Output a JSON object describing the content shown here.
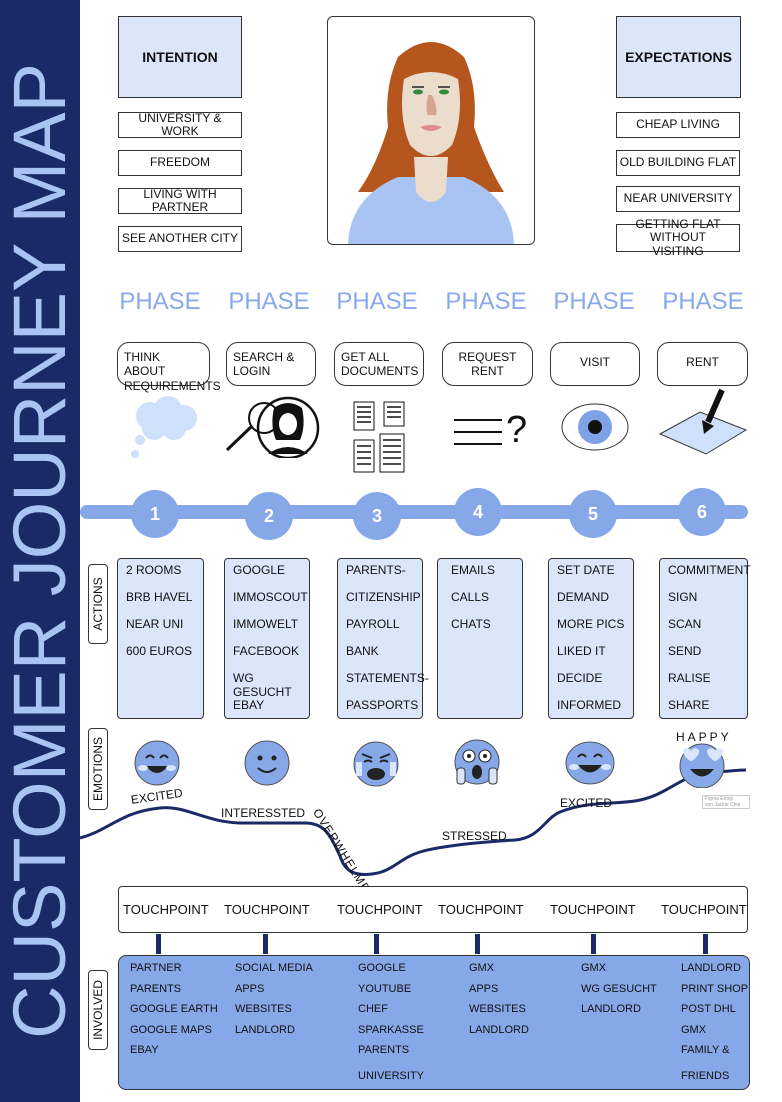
{
  "title": "CUSTOMER JOURNEY MAP",
  "intention": {
    "heading": "INTENTION",
    "items": [
      "UNIVERSITY & WORK",
      "FREEDOM",
      "LIVING WITH PARTNER",
      "SEE ANOTHER CITY"
    ]
  },
  "expectations": {
    "heading": "EXPECTATIONS",
    "items": [
      "CHEAP LIVING",
      "OLD BUILDING FLAT",
      "NEAR UNIVERSITY",
      "GETTING FLAT WITHOUT VISITING"
    ]
  },
  "phase_label": "PHASE",
  "phases": [
    {
      "num": "1",
      "label": "THINK ABOUT REQUIREMENTS",
      "icon": "thought-cloud-icon"
    },
    {
      "num": "2",
      "label": "SEARCH & LOGIN",
      "icon": "magnifier-person-icon"
    },
    {
      "num": "3",
      "label": "GET ALL DOCUMENTS",
      "icon": "documents-icon"
    },
    {
      "num": "4",
      "label": "REQUEST RENT",
      "icon": "question-lines-icon"
    },
    {
      "num": "5",
      "label": "VISIT",
      "icon": "eye-icon"
    },
    {
      "num": "6",
      "label": "RENT",
      "icon": "signing-paper-icon"
    }
  ],
  "actions_label": "ACTIONS",
  "actions": [
    [
      "2 ROOMS",
      "BRB HAVEL",
      "NEAR UNI",
      "600 EUROS"
    ],
    [
      "GOOGLE",
      "IMMOSCOUT",
      "IMMOWELT",
      "FACEBOOK",
      "WG GESUCHT",
      "EBAY"
    ],
    [
      "PARENTS-",
      "CITIZENSHIP",
      "PAYROLL",
      "BANK",
      "STATEMENTS-",
      "PASSPORTS"
    ],
    [
      "EMAILS",
      "CALLS",
      "CHATS"
    ],
    [
      "SET DATE",
      "DEMAND",
      "MORE PICS",
      "LIKED IT",
      "DECIDE",
      "INFORMED"
    ],
    [
      "COMMITMENT",
      "SIGN",
      "SCAN",
      "SEND",
      "RALISE",
      "SHARE"
    ]
  ],
  "emotions_label": "EMOTIONS",
  "emotions": {
    "excited1": "EXCITED",
    "interested": "INTERESSTED",
    "overwhelmed": "OVERWHELMED",
    "stressed": "STRESSED",
    "excited2": "EXCITED",
    "happy": "HAPPY",
    "credit_line1": "Figma Emoji",
    "credit_line2": "von Jackie Chui"
  },
  "touchpoint_label": "TOUCHPOINT",
  "involved_label": "INVOLVED",
  "involved": [
    [
      "PARTNER",
      "PARENTS",
      "GOOGLE EARTH",
      "GOOGLE MAPS",
      "EBAY"
    ],
    [
      "SOCIAL MEDIA",
      "APPS",
      "WEBSITES",
      "LANDLORD"
    ],
    [
      "GOOGLE",
      "YOUTUBE",
      "CHEF",
      "SPARKASSE",
      "PARENTS",
      "UNIVERSITY"
    ],
    [
      "GMX",
      "APPS",
      "WEBSITES",
      "LANDLORD"
    ],
    [
      "GMX",
      "WG GESUCHT",
      "LANDLORD"
    ],
    [
      "LANDLORD",
      "PRINT SHOP",
      "POST DHL",
      "GMX",
      "FAMILY &",
      "FRIENDS"
    ]
  ],
  "colors": {
    "navy": "#1a2a66",
    "light_blue": "#dbe6fb",
    "mid_blue": "#86a8e8",
    "phase_text": "#89a9ec"
  }
}
